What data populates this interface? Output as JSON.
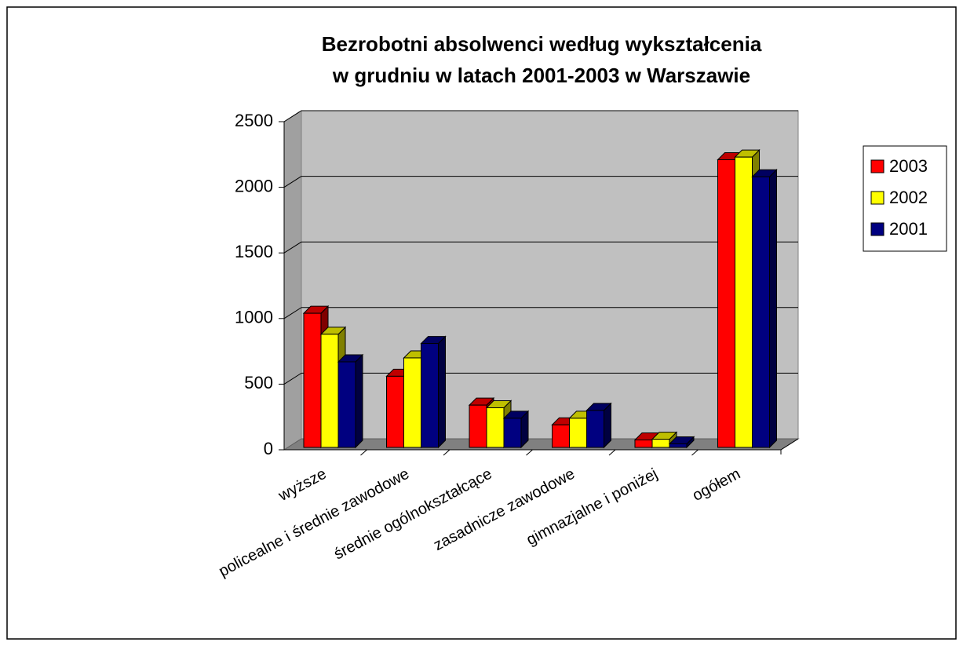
{
  "chart_data": {
    "type": "bar3d",
    "title": [
      "Bezrobotni absolwenci według wykształcenia",
      "w grudniu w latach 2001-2003 w Warszawie"
    ],
    "categories": [
      "wyższe",
      "policealne i średnie zawodowe",
      "średnie ogólnokształcące",
      "zasadnicze zawodowe",
      "gimnazjalne i poniżej",
      "ogółem"
    ],
    "series": [
      {
        "name": "2003",
        "color": "#ff0000",
        "values": [
          1040,
          560,
          340,
          190,
          75,
          2210
        ]
      },
      {
        "name": "2002",
        "color": "#ffff00",
        "values": [
          880,
          700,
          320,
          240,
          80,
          2230
        ]
      },
      {
        "name": "2001",
        "color": "#000080",
        "values": [
          670,
          810,
          240,
          300,
          45,
          2080
        ]
      }
    ],
    "ylim": [
      0,
      2500
    ],
    "yticks": [
      0,
      500,
      1000,
      1500,
      2000,
      2500
    ],
    "grid": true,
    "legend": "right"
  }
}
